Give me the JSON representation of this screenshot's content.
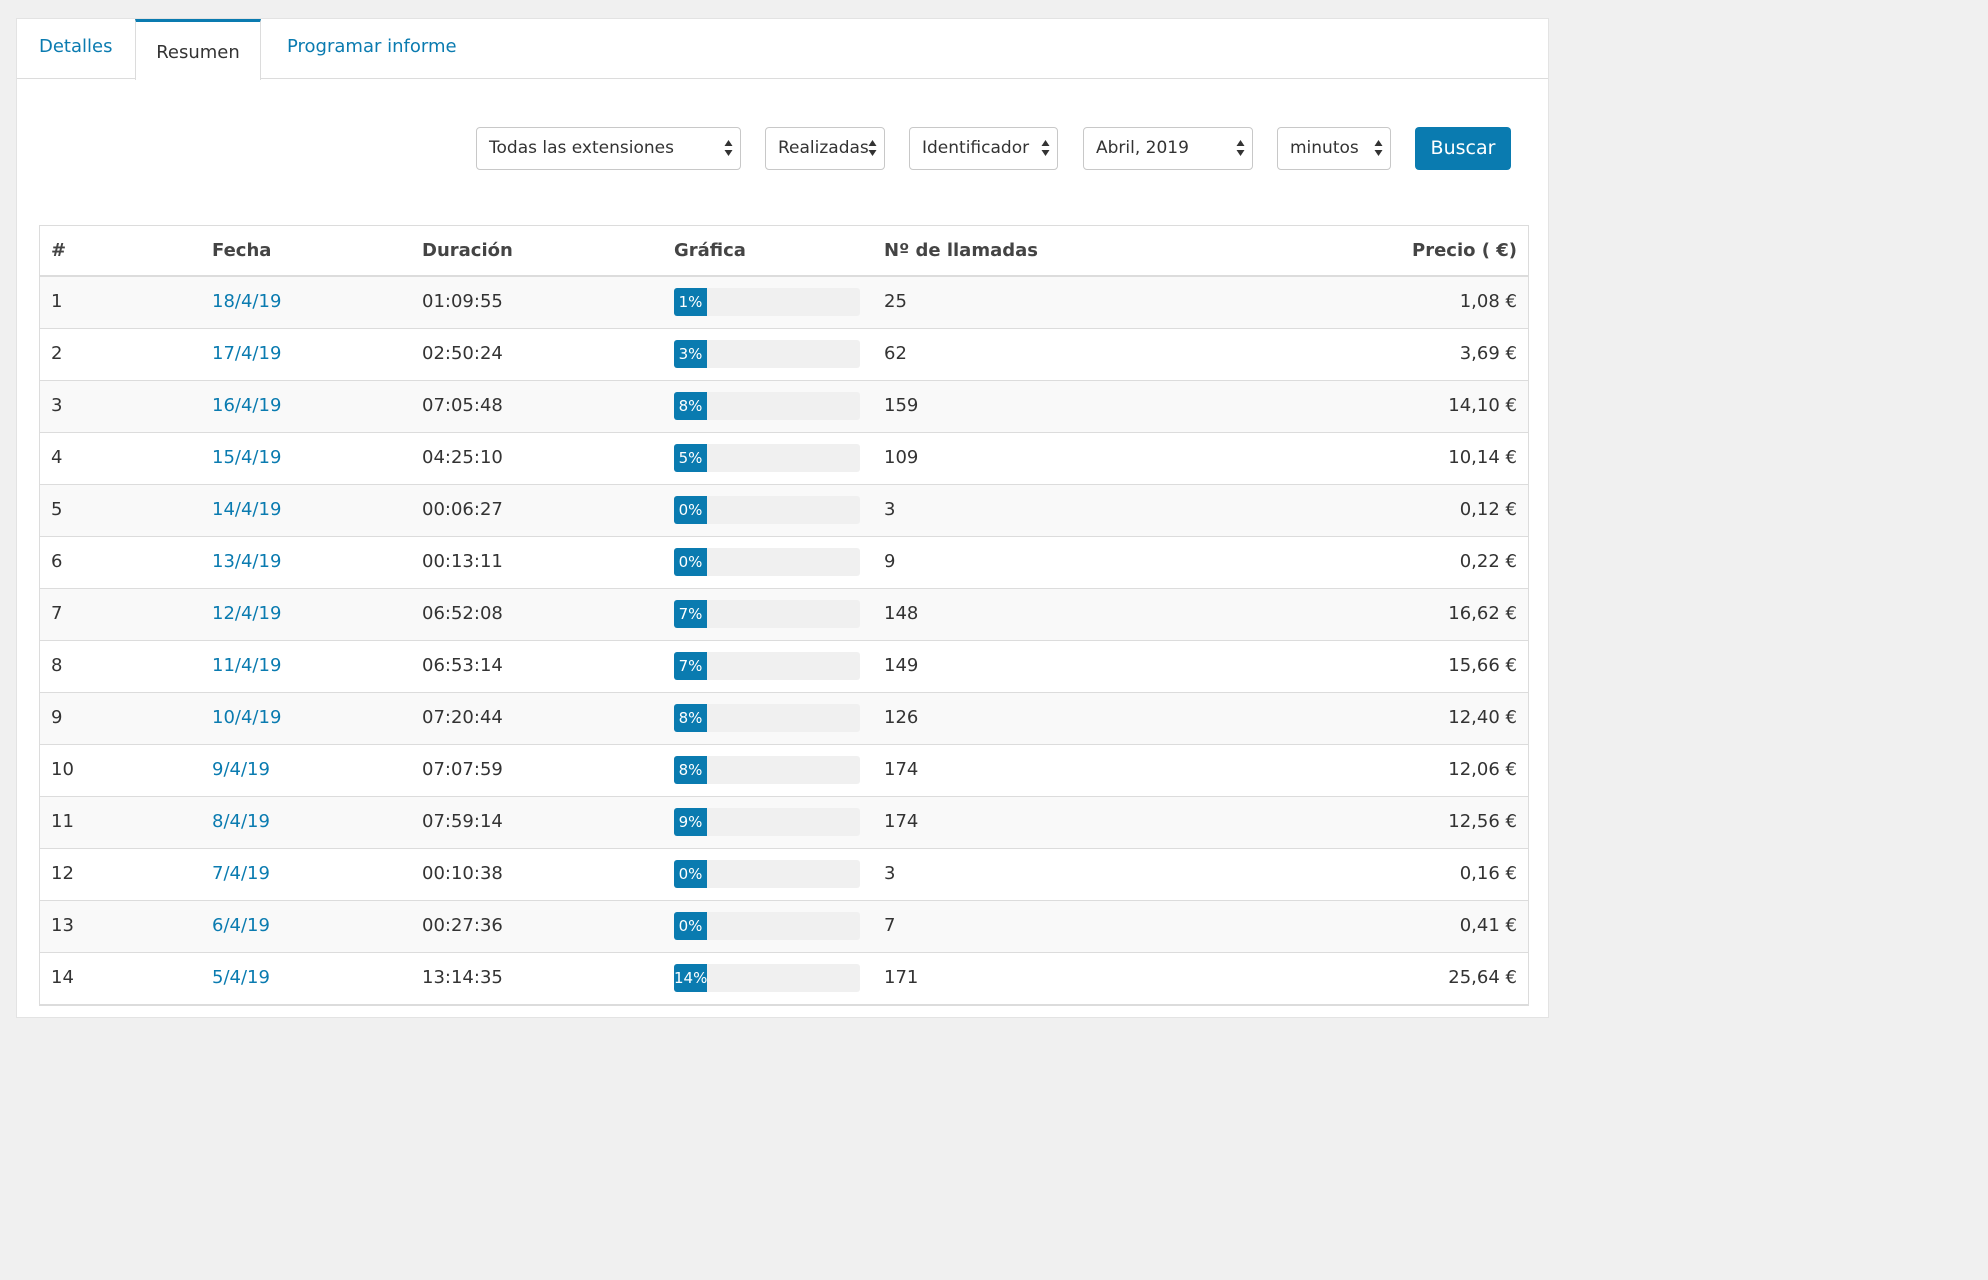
{
  "tabs": [
    {
      "label": "Detalles"
    },
    {
      "label": "Resumen"
    },
    {
      "label": "Programar informe"
    }
  ],
  "filters": {
    "extensiones": "Todas las extensiones",
    "tipo": "Realizadas",
    "agrupar": "Identificador",
    "periodo": "Abril, 2019",
    "unidad": "minutos",
    "buscar_label": "Buscar"
  },
  "colors": {
    "accent": "#0a7bb0"
  },
  "table": {
    "headers": [
      "#",
      "Fecha",
      "Duración",
      "Gráfica",
      "Nº de llamadas",
      "Precio ( €)"
    ],
    "rows": [
      {
        "n": "1",
        "fecha": "18/4/19",
        "duracion": "01:09:55",
        "pct": 1,
        "pct_label": "1%",
        "llamadas": "25",
        "precio": "1,08 €"
      },
      {
        "n": "2",
        "fecha": "17/4/19",
        "duracion": "02:50:24",
        "pct": 3,
        "pct_label": "3%",
        "llamadas": "62",
        "precio": "3,69 €"
      },
      {
        "n": "3",
        "fecha": "16/4/19",
        "duracion": "07:05:48",
        "pct": 8,
        "pct_label": "8%",
        "llamadas": "159",
        "precio": "14,10 €"
      },
      {
        "n": "4",
        "fecha": "15/4/19",
        "duracion": "04:25:10",
        "pct": 5,
        "pct_label": "5%",
        "llamadas": "109",
        "precio": "10,14 €"
      },
      {
        "n": "5",
        "fecha": "14/4/19",
        "duracion": "00:06:27",
        "pct": 0,
        "pct_label": "0%",
        "llamadas": "3",
        "precio": "0,12 €"
      },
      {
        "n": "6",
        "fecha": "13/4/19",
        "duracion": "00:13:11",
        "pct": 0,
        "pct_label": "0%",
        "llamadas": "9",
        "precio": "0,22 €"
      },
      {
        "n": "7",
        "fecha": "12/4/19",
        "duracion": "06:52:08",
        "pct": 7,
        "pct_label": "7%",
        "llamadas": "148",
        "precio": "16,62 €"
      },
      {
        "n": "8",
        "fecha": "11/4/19",
        "duracion": "06:53:14",
        "pct": 7,
        "pct_label": "7%",
        "llamadas": "149",
        "precio": "15,66 €"
      },
      {
        "n": "9",
        "fecha": "10/4/19",
        "duracion": "07:20:44",
        "pct": 8,
        "pct_label": "8%",
        "llamadas": "126",
        "precio": "12,40 €"
      },
      {
        "n": "10",
        "fecha": "9/4/19",
        "duracion": "07:07:59",
        "pct": 8,
        "pct_label": "8%",
        "llamadas": "174",
        "precio": "12,06 €"
      },
      {
        "n": "11",
        "fecha": "8/4/19",
        "duracion": "07:59:14",
        "pct": 9,
        "pct_label": "9%",
        "llamadas": "174",
        "precio": "12,56 €"
      },
      {
        "n": "12",
        "fecha": "7/4/19",
        "duracion": "00:10:38",
        "pct": 0,
        "pct_label": "0%",
        "llamadas": "3",
        "precio": "0,16 €"
      },
      {
        "n": "13",
        "fecha": "6/4/19",
        "duracion": "00:27:36",
        "pct": 0,
        "pct_label": "0%",
        "llamadas": "7",
        "precio": "0,41 €"
      },
      {
        "n": "14",
        "fecha": "5/4/19",
        "duracion": "13:14:35",
        "pct": 14,
        "pct_label": "14%",
        "llamadas": "171",
        "precio": "25,64 €"
      }
    ]
  }
}
